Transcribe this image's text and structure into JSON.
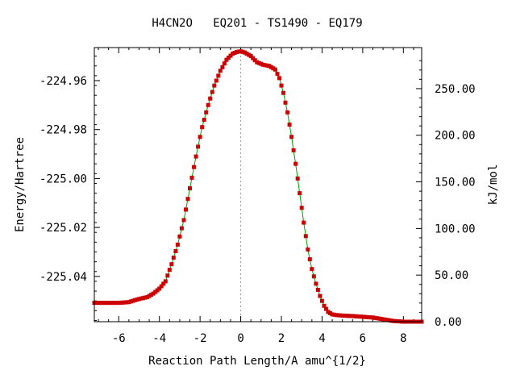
{
  "chart_data": {
    "type": "line",
    "title": "H4CN2O   EQ201 - TS1490 - EQ179",
    "xlabel": "Reaction Path Length/A amu^{1/2}",
    "ylabel": "Energy/Hartree",
    "y2label": "kJ/mol",
    "xlim": [
      -7.2,
      8.9
    ],
    "ylim": [
      -225.0585,
      -224.9465
    ],
    "y2lim": [
      0.0,
      294.05
    ],
    "x_ticks": [
      "-6",
      "-4",
      "-2",
      "0",
      "2",
      "4",
      "6",
      "8"
    ],
    "x_tick_values": [
      -6,
      -4,
      -2,
      0,
      2,
      4,
      6,
      8
    ],
    "y_ticks": [
      "-224.96",
      "-224.98",
      "-225.00",
      "-225.02",
      "-225.04"
    ],
    "y_tick_values": [
      -224.96,
      -224.98,
      -225.0,
      -225.02,
      -225.04
    ],
    "y2_ticks": [
      "250.00",
      "200.00",
      "150.00",
      "100.00",
      "50.00",
      "0.00"
    ],
    "y2_tick_values": [
      250,
      200,
      150,
      100,
      50,
      0
    ],
    "ts_x": 0,
    "line_color": "#00a000",
    "marker_color": "#cc0000",
    "grid": false,
    "series": [
      {
        "x": [
          -7.2,
          -6.5,
          -6.0,
          -5.5,
          -5.2,
          -4.9,
          -4.6,
          -4.3,
          -4.0,
          -3.7,
          -3.4,
          -3.1,
          -2.8,
          -2.5,
          -2.2,
          -1.9,
          -1.6,
          -1.3,
          -1.0,
          -0.7,
          -0.4,
          -0.2,
          0.0,
          0.2,
          0.5,
          0.8,
          1.1,
          1.4,
          1.7,
          1.9,
          2.1,
          2.3,
          2.5,
          2.7,
          2.9,
          3.1,
          3.3,
          3.5,
          3.7,
          3.9,
          4.1,
          4.3,
          4.5,
          4.7,
          5.0,
          5.5,
          6.0,
          6.5,
          7.0,
          7.5,
          8.0,
          8.5,
          8.9
        ],
        "y": [
          -225.0508,
          -225.0508,
          -225.0508,
          -225.0505,
          -225.0497,
          -225.049,
          -225.0485,
          -225.047,
          -225.045,
          -225.042,
          -225.035,
          -225.027,
          -225.017,
          -225.004,
          -224.991,
          -224.979,
          -224.97,
          -224.962,
          -224.956,
          -224.9515,
          -224.949,
          -224.9483,
          -224.948,
          -224.9485,
          -224.95,
          -224.9525,
          -224.9535,
          -224.954,
          -224.9555,
          -224.959,
          -224.965,
          -224.973,
          -224.983,
          -224.994,
          -225.006,
          -225.018,
          -225.029,
          -225.037,
          -225.043,
          -225.048,
          -225.052,
          -225.0545,
          -225.0555,
          -225.0558,
          -225.056,
          -225.0562,
          -225.0565,
          -225.0568,
          -225.0575,
          -225.0582,
          -225.0585,
          -225.0585,
          -225.0585
        ]
      }
    ]
  }
}
